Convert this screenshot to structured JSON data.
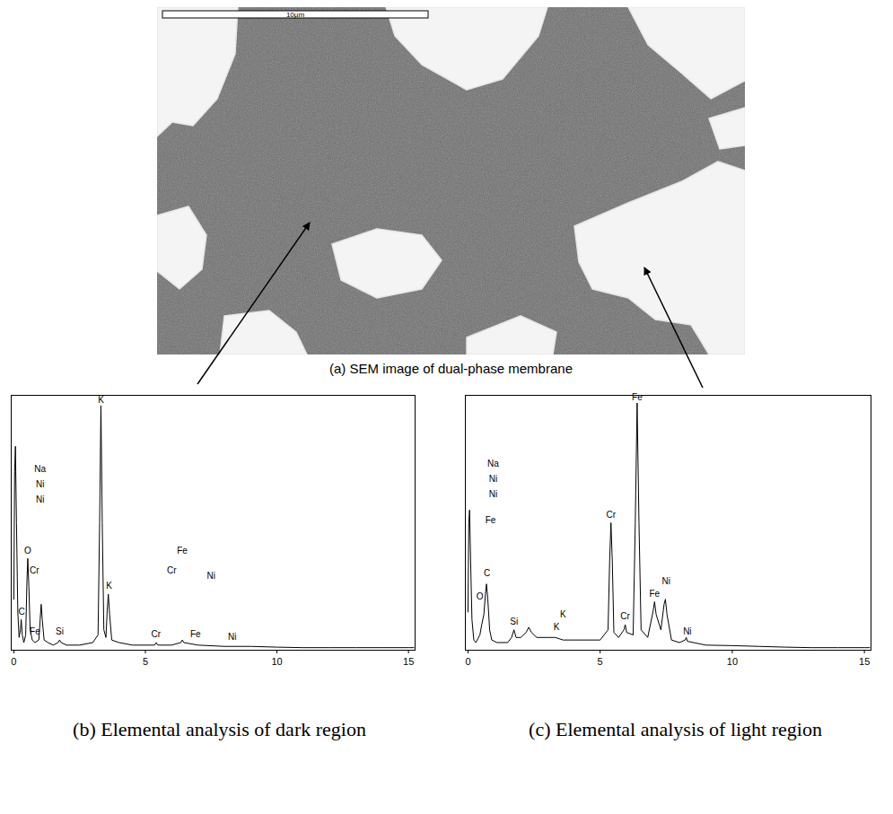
{
  "sem_image": {
    "caption": "(a) SEM image of dual-phase membrane",
    "scale_bar": "10µm"
  },
  "chart_data": [
    {
      "type": "line",
      "caption": "(b) Elemental analysis of dark region",
      "color": "#000000",
      "xlim": [
        -0.1,
        15.25
      ],
      "xticks": [
        0,
        5,
        10,
        15
      ],
      "ylim": [
        0,
        100
      ],
      "tick_labels": "x",
      "x": [
        0,
        0.03,
        0.06,
        0.1,
        0.15,
        0.2,
        0.25,
        0.28,
        0.32,
        0.38,
        0.45,
        0.5,
        0.53,
        0.57,
        0.62,
        0.7,
        0.8,
        0.95,
        1.0,
        1.04,
        1.08,
        1.15,
        1.3,
        1.5,
        1.68,
        1.74,
        1.8,
        2.0,
        2.5,
        3.0,
        3.2,
        3.26,
        3.31,
        3.36,
        3.42,
        3.5,
        3.55,
        3.59,
        3.64,
        3.72,
        4.0,
        4.5,
        5.0,
        5.35,
        5.41,
        5.47,
        6.0,
        6.35,
        6.4,
        6.46,
        7.0,
        8.0,
        9.0,
        10,
        11,
        12,
        13,
        14,
        15,
        15.2
      ],
      "values": [
        20,
        70,
        80,
        50,
        15,
        5,
        8,
        12,
        6,
        3,
        6,
        28,
        36,
        25,
        8,
        4,
        3,
        4,
        12,
        18,
        12,
        4,
        3,
        2,
        3,
        4,
        3,
        2,
        2,
        3,
        6,
        50,
        96,
        50,
        8,
        5,
        16,
        22,
        14,
        4,
        3,
        2,
        2,
        2,
        3,
        2,
        2,
        3,
        4,
        3,
        2,
        1.5,
        1.5,
        1.2,
        1,
        1,
        1,
        1,
        1,
        1
      ],
      "annotations": [
        {
          "text": "K",
          "x": 3.31,
          "y": 97
        },
        {
          "text": "K",
          "x": 3.62,
          "y": 24
        },
        {
          "text": "Na",
          "x": 1.0,
          "y": 70
        },
        {
          "text": "Ni",
          "x": 1.0,
          "y": 64
        },
        {
          "text": "Ni",
          "x": 1.0,
          "y": 58
        },
        {
          "text": "O",
          "x": 0.53,
          "y": 38
        },
        {
          "text": "Cr",
          "x": 0.78,
          "y": 30
        },
        {
          "text": "C",
          "x": 0.3,
          "y": 14
        },
        {
          "text": "Fe",
          "x": 0.8,
          "y": 6
        },
        {
          "text": "Si",
          "x": 1.74,
          "y": 6
        },
        {
          "text": "Fe",
          "x": 6.4,
          "y": 38
        },
        {
          "text": "Cr",
          "x": 6.0,
          "y": 30
        },
        {
          "text": "Ni",
          "x": 7.5,
          "y": 28
        },
        {
          "text": "Cr",
          "x": 5.4,
          "y": 5
        },
        {
          "text": "Fe",
          "x": 6.9,
          "y": 5
        },
        {
          "text": "Ni",
          "x": 8.3,
          "y": 4
        }
      ]
    },
    {
      "type": "line",
      "caption": "(c) Elemental analysis of light region",
      "color": "#000000",
      "xlim": [
        -0.1,
        15.25
      ],
      "xticks": [
        0,
        5,
        10,
        15
      ],
      "ylim": [
        0,
        100
      ],
      "tick_labels": "x",
      "x": [
        0,
        0.03,
        0.06,
        0.1,
        0.15,
        0.22,
        0.3,
        0.45,
        0.52,
        0.6,
        0.66,
        0.7,
        0.75,
        0.82,
        0.9,
        1.1,
        1.5,
        1.65,
        1.74,
        1.82,
        2.0,
        2.2,
        2.3,
        2.4,
        2.6,
        3.0,
        3.3,
        3.6,
        4.0,
        4.5,
        5.0,
        5.3,
        5.36,
        5.41,
        5.46,
        5.52,
        5.7,
        5.9,
        5.95,
        6.0,
        6.25,
        6.33,
        6.4,
        6.47,
        6.55,
        6.8,
        7.0,
        7.06,
        7.12,
        7.3,
        7.42,
        7.47,
        7.53,
        7.7,
        8.0,
        8.22,
        8.26,
        8.3,
        9,
        10,
        11,
        12,
        13,
        14,
        15,
        15.2
      ],
      "values": [
        15,
        50,
        55,
        35,
        12,
        4,
        3,
        6,
        10,
        14,
        22,
        26,
        20,
        8,
        4,
        3,
        3,
        5,
        8,
        5,
        5,
        7,
        9,
        7,
        5,
        5,
        5,
        4,
        4,
        4,
        4,
        8,
        35,
        50,
        35,
        7,
        5,
        8,
        10,
        7,
        6,
        50,
        97,
        50,
        8,
        5,
        15,
        19,
        14,
        8,
        18,
        20,
        14,
        4,
        3,
        4,
        5,
        3.5,
        2,
        1.8,
        1.5,
        1.2,
        1,
        1,
        1,
        1
      ],
      "annotations": [
        {
          "text": "Fe",
          "x": 6.4,
          "y": 98
        },
        {
          "text": "Cr",
          "x": 5.41,
          "y": 52
        },
        {
          "text": "Cr",
          "x": 5.95,
          "y": 12
        },
        {
          "text": "Ni",
          "x": 7.5,
          "y": 26
        },
        {
          "text": "Fe",
          "x": 7.06,
          "y": 21
        },
        {
          "text": "Ni",
          "x": 8.3,
          "y": 6
        },
        {
          "text": "K",
          "x": 3.6,
          "y": 13
        },
        {
          "text": "K",
          "x": 3.35,
          "y": 8
        },
        {
          "text": "Si",
          "x": 1.74,
          "y": 10
        },
        {
          "text": "Na",
          "x": 0.95,
          "y": 72
        },
        {
          "text": "Ni",
          "x": 0.95,
          "y": 66
        },
        {
          "text": "Ni",
          "x": 0.95,
          "y": 60
        },
        {
          "text": "Fe",
          "x": 0.85,
          "y": 50
        },
        {
          "text": "C",
          "x": 0.72,
          "y": 29
        },
        {
          "text": "O",
          "x": 0.45,
          "y": 20
        }
      ]
    }
  ]
}
